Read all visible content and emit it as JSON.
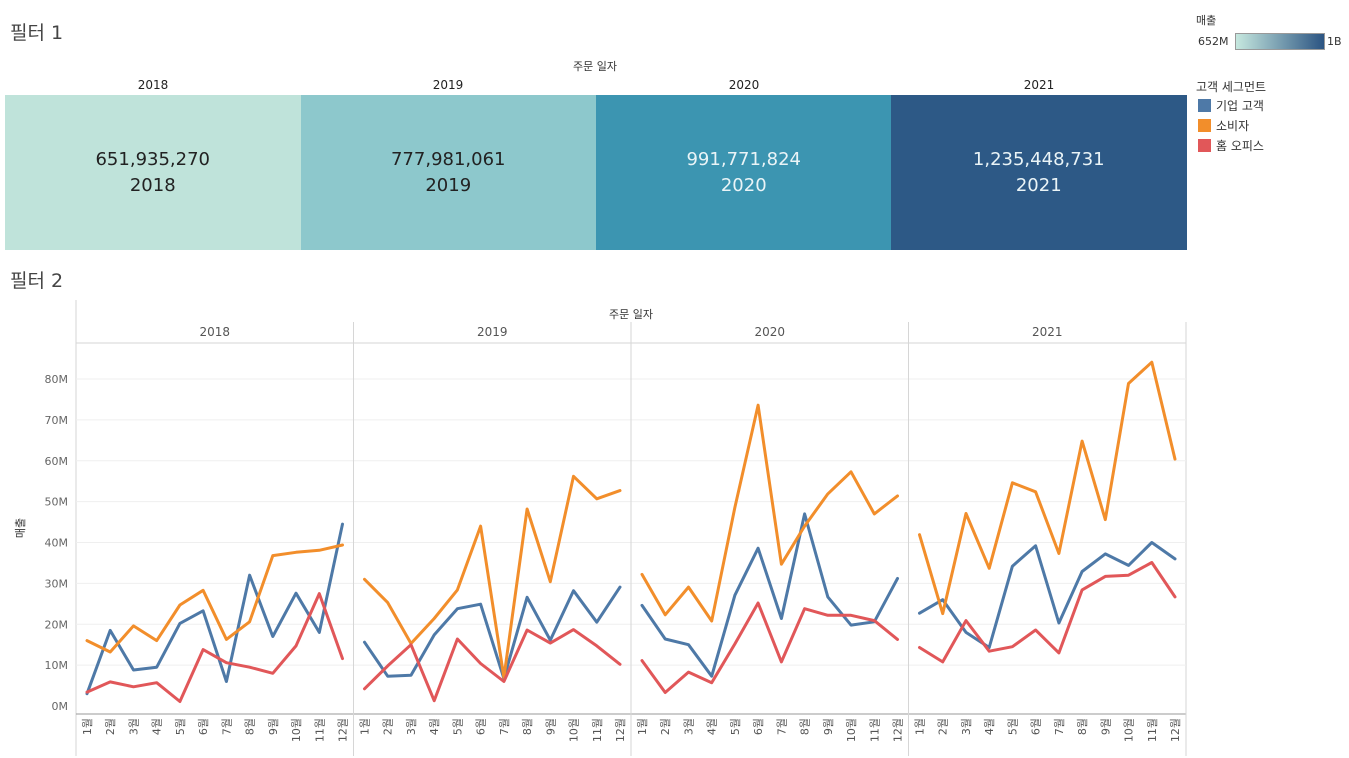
{
  "filter1": {
    "title": "필터 1",
    "axis_title": "주문 일자",
    "tiles": [
      {
        "year": "2018",
        "value": "651,935,270",
        "color": "#bfe3da",
        "text_color": "#222222"
      },
      {
        "year": "2019",
        "value": "777,981,061",
        "color": "#8dc8cc",
        "text_color": "#222222"
      },
      {
        "year": "2020",
        "value": "991,771,824",
        "color": "#3c95b1",
        "text_color": "#eaf4f7"
      },
      {
        "year": "2021",
        "value": "1,235,448,731",
        "color": "#2d5986",
        "text_color": "#eaf4f7"
      }
    ]
  },
  "color_legend": {
    "title": "매출",
    "min_label": "652M",
    "max_label": "1B",
    "gradient_start": "#c6e8df",
    "gradient_end": "#2b5482"
  },
  "segment_legend": {
    "title": "고객 세그먼트",
    "items": [
      {
        "label": "기업 고객",
        "color": "#4e79a7"
      },
      {
        "label": "소비자",
        "color": "#f28e2b"
      },
      {
        "label": "홈 오피스",
        "color": "#e15759"
      }
    ]
  },
  "filter2": {
    "title": "필터 2",
    "axis_title": "주문 일자"
  },
  "chart_data": {
    "type": "line",
    "title": "필터 2",
    "xlabel": "주문 일자",
    "ylabel": "매출",
    "ylim": [
      0,
      85000000
    ],
    "y_ticks": [
      "0M",
      "10M",
      "20M",
      "30M",
      "40M",
      "50M",
      "60M",
      "70M",
      "80M"
    ],
    "panels": [
      "2018",
      "2019",
      "2020",
      "2021"
    ],
    "months": [
      "1월",
      "2월",
      "3월",
      "4월",
      "5월",
      "6월",
      "7월",
      "8월",
      "9월",
      "10월",
      "11월",
      "12월"
    ],
    "series": [
      {
        "name": "기업 고객",
        "color": "#4e79a7",
        "values": {
          "2018": [
            3,
            18.5,
            8.8,
            9.5,
            20.2,
            23.3,
            6,
            32,
            17,
            27.6,
            18,
            44.5
          ],
          "2019": [
            15.6,
            7.3,
            7.5,
            17.4,
            23.8,
            24.9,
            6.7,
            26.6,
            16.1,
            28.2,
            20.5,
            29.1
          ],
          "2020": [
            24.6,
            16.4,
            15,
            7.3,
            27.1,
            38.6,
            21.4,
            47,
            26.7,
            19.8,
            20.6,
            31.2
          ],
          "2021": [
            22.7,
            26,
            18,
            14.3,
            34.2,
            39.2,
            20.3,
            32.9,
            37.2,
            34.4,
            40,
            36
          ]
        }
      },
      {
        "name": "소비자",
        "color": "#f28e2b",
        "values": {
          "2018": [
            16,
            13.2,
            19.6,
            16,
            24.7,
            28.3,
            16.3,
            20.6,
            36.8,
            37.6,
            38.1,
            39.4
          ],
          "2019": [
            31,
            25.3,
            15.3,
            21.4,
            28.4,
            44,
            7,
            48.2,
            30.4,
            56.2,
            50.7,
            52.7
          ],
          "2020": [
            32.2,
            22.3,
            29.1,
            20.8,
            48.6,
            73.6,
            34.7,
            44,
            51.9,
            57.3,
            47,
            51.4
          ],
          "2021": [
            41.9,
            22.6,
            47.1,
            33.7,
            54.6,
            52.4,
            37.3,
            64.8,
            45.6,
            78.9,
            84.1,
            60.4
          ]
        }
      },
      {
        "name": "홈 오피스",
        "color": "#e15759",
        "values": {
          "2018": [
            3.4,
            5.9,
            4.7,
            5.7,
            1.1,
            13.8,
            10.6,
            9.5,
            8,
            14.7,
            27.5,
            11.6
          ],
          "2019": [
            4.2,
            9.8,
            15,
            1.3,
            16.4,
            10.4,
            6,
            18.6,
            15.4,
            18.7,
            14.7,
            10.2
          ],
          "2020": [
            11.1,
            3.3,
            8.3,
            5.7,
            15.2,
            25.2,
            10.8,
            23.8,
            22.2,
            22.2,
            20.9,
            16.3
          ],
          "2021": [
            14.3,
            10.8,
            20.9,
            13.4,
            14.5,
            18.6,
            13,
            28.4,
            31.7,
            32,
            35.1,
            26.7
          ]
        }
      }
    ]
  }
}
